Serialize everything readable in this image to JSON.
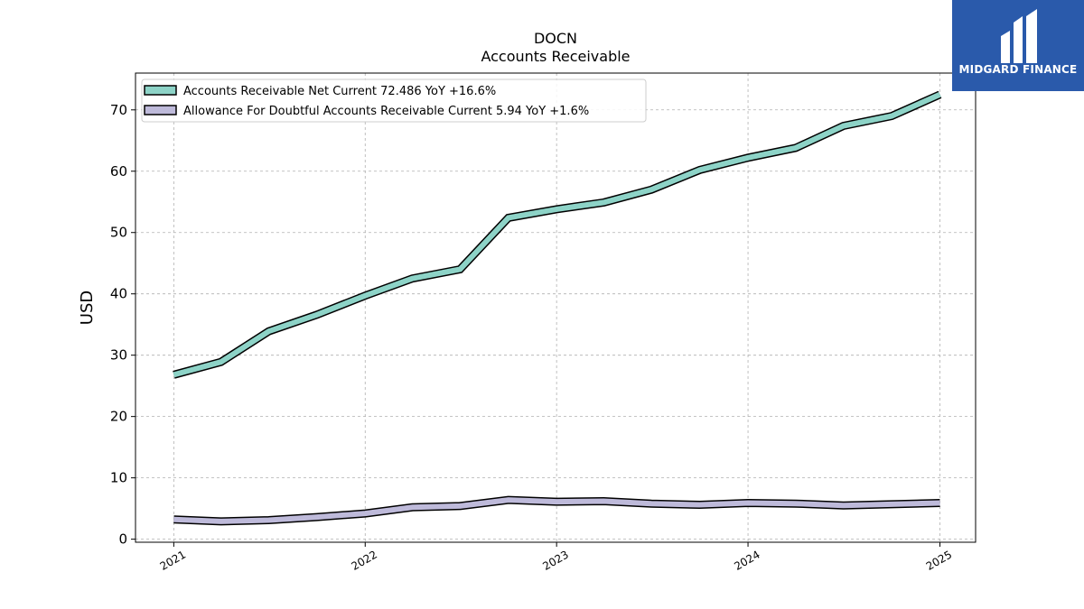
{
  "chart_data": {
    "type": "line",
    "title": "DOCN",
    "subtitle": "Accounts Receivable",
    "ylabel": "USD",
    "xlabel": "",
    "ylim": [
      -0.5,
      76
    ],
    "xlim": [
      "2020-10-20",
      "2025-03-10"
    ],
    "y_ticks": [
      0,
      10,
      20,
      30,
      40,
      50,
      60,
      70
    ],
    "x_ticks": [
      "2021",
      "2022",
      "2023",
      "2024",
      "2025"
    ],
    "grid": true,
    "legend_position": "upper-left",
    "x": [
      "2021-01-01",
      "2021-04-01",
      "2021-07-01",
      "2021-10-01",
      "2022-01-01",
      "2022-04-01",
      "2022-07-01",
      "2022-10-01",
      "2023-01-01",
      "2023-04-01",
      "2023-07-01",
      "2023-10-01",
      "2024-01-01",
      "2024-04-01",
      "2024-07-01",
      "2024-10-01",
      "2025-01-01"
    ],
    "series": [
      {
        "name": "Accounts Receivable Net Current",
        "legend_label": "Accounts Receivable Net Current  72.486 YoY +16.6%",
        "color": "#8dd3c7",
        "values": [
          26.8,
          28.9,
          33.9,
          36.6,
          39.7,
          42.5,
          44.0,
          52.4,
          53.8,
          54.9,
          57.0,
          60.2,
          62.2,
          63.8,
          67.4,
          69.0,
          72.5
        ]
      },
      {
        "name": "Allowance For Doubtful Accounts Receivable Current",
        "legend_label": "Allowance For Doubtful Accounts Receivable Current  5.94 YoY +1.6%",
        "color": "#bebada",
        "values": [
          3.2,
          2.9,
          3.1,
          3.6,
          4.2,
          5.2,
          5.4,
          6.4,
          6.1,
          6.2,
          5.8,
          5.6,
          5.9,
          5.8,
          5.5,
          5.7,
          5.9
        ]
      }
    ]
  },
  "logo": {
    "text": "MIDGARD FINANCE",
    "bg_color": "#2a5aab"
  }
}
